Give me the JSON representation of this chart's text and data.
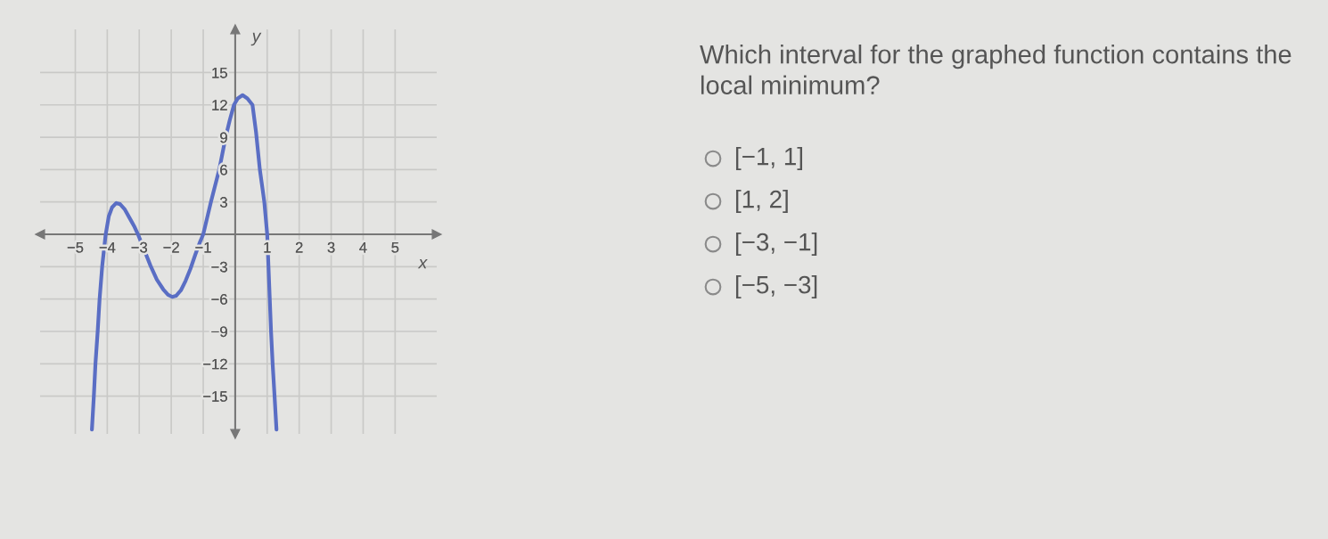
{
  "chart_data": {
    "type": "line",
    "xlabel": "x",
    "ylabel": "y",
    "x": [
      -4.48,
      -4.42,
      -4.37,
      -4.3,
      -4.24,
      -4.16,
      -4.05,
      -3.95,
      -3.85,
      -3.72,
      -3.6,
      -3.45,
      -3.3,
      -3.15,
      -3.04,
      -2.85,
      -2.65,
      -2.45,
      -2.25,
      -2.1,
      -1.97,
      -1.85,
      -1.7,
      -1.55,
      -1.4,
      -1.25,
      -1.1,
      -1.0,
      -0.88,
      -0.76,
      -0.63,
      -0.5,
      -0.4,
      -0.3,
      -0.17,
      -0.04,
      0.08,
      0.23,
      0.38,
      0.54,
      0.65,
      0.77,
      0.85,
      0.91,
      1.0,
      1.04,
      1.08,
      1.12,
      1.17,
      1.23,
      1.29
    ],
    "series": [
      {
        "color": "#5a6ec4",
        "values": [
          -18.1,
          -15,
          -12,
          -9,
          -6,
          -3,
          0,
          1.7,
          2.5,
          2.9,
          2.8,
          2.3,
          1.5,
          0.7,
          0,
          -1.4,
          -2.9,
          -4.2,
          -5.1,
          -5.6,
          -5.8,
          -5.7,
          -5.2,
          -4.3,
          -3.2,
          -1.9,
          -0.7,
          0,
          1.5,
          3,
          4.5,
          6,
          7.5,
          9,
          10.6,
          12,
          12.6,
          12.9,
          12.6,
          12,
          9.5,
          6,
          4.3,
          3,
          0,
          -3,
          -6,
          -9,
          -12,
          -15,
          -18.1
        ]
      }
    ],
    "xlim": [
      -6.1,
      6.3
    ],
    "ylim": [
      -18.5,
      19
    ],
    "xticks": [
      {
        "value": -5,
        "label": "−5"
      },
      {
        "value": -4,
        "label": "−4"
      },
      {
        "value": -3,
        "label": "−3"
      },
      {
        "value": -2,
        "label": "−2"
      },
      {
        "value": -1,
        "label": "−1"
      },
      1,
      2,
      3,
      4,
      5
    ],
    "yticks": [
      {
        "value": -15,
        "label": "−15"
      },
      {
        "value": -12,
        "label": "−12"
      },
      {
        "value": -9,
        "label": "−9"
      },
      {
        "value": -6,
        "label": "−6"
      },
      {
        "value": -3,
        "label": "−3"
      },
      3,
      6,
      9,
      12,
      15
    ],
    "grid": true,
    "line_style": "solid",
    "annotations": [
      "Which interval for the graphed function contains the local minimum?",
      "[−1, 1]",
      "[1, 2]",
      "[−3, −1]",
      "[−5, −3]"
    ]
  }
}
